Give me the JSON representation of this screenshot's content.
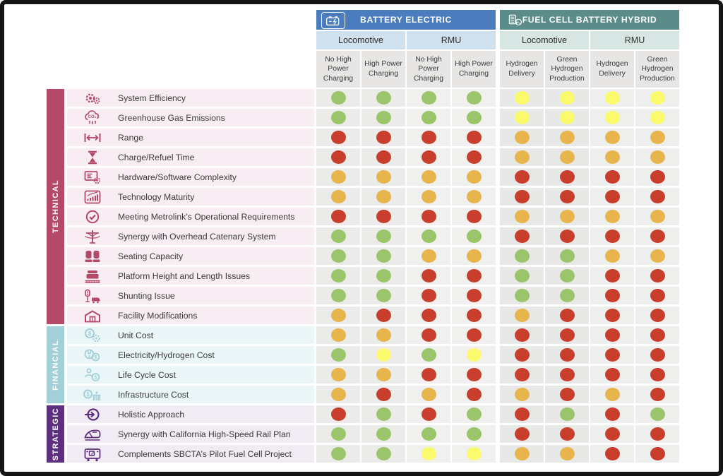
{
  "chart_data": {
    "type": "table",
    "groups": [
      {
        "label": "BATTERY ELECTRIC",
        "icon": "battery-icon",
        "color": "#4a7cbe",
        "sub_color": "#cfe0ee",
        "boxed": true
      },
      {
        "label": "FUEL CELL BATTERY HYBRID",
        "icon": "fuel-cell-icon",
        "color": "#5b8c8a",
        "sub_color": "#d7e5e3",
        "boxed": false
      }
    ],
    "subgroups": [
      "Locomotive",
      "RMU",
      "Locomotive",
      "RMU"
    ],
    "columns": [
      "No High Power Charging",
      "High Power Charging",
      "No High Power Charging",
      "High Power Charging",
      "Hydrogen Delivery",
      "Green Hydrogen Production",
      "Hydrogen Delivery",
      "Green Hydrogen Production"
    ],
    "rating_colors": {
      "G": "#9bc56a",
      "Y": "#fbfa6d",
      "A": "#e7b54b",
      "R": "#c93d2d"
    },
    "categories": [
      {
        "label": "TECHNICAL",
        "color": "#b54a68",
        "row_bg": "#f7edf3",
        "rows": [
          {
            "icon": "gears-icon",
            "label": "System Efficiency",
            "ratings": [
              "G",
              "G",
              "G",
              "G",
              "Y",
              "Y",
              "Y",
              "Y"
            ]
          },
          {
            "icon": "co2-cloud-icon",
            "label": "Greenhouse Gas Emissions",
            "ratings": [
              "G",
              "G",
              "G",
              "G",
              "Y",
              "Y",
              "Y",
              "Y"
            ]
          },
          {
            "icon": "range-arrows-icon",
            "label": "Range",
            "ratings": [
              "R",
              "R",
              "R",
              "R",
              "A",
              "A",
              "A",
              "A"
            ]
          },
          {
            "icon": "hourglass-icon",
            "label": "Charge/Refuel Time",
            "ratings": [
              "R",
              "R",
              "R",
              "R",
              "A",
              "A",
              "A",
              "A"
            ]
          },
          {
            "icon": "hardware-software-icon",
            "label": "Hardware/Software Complexity",
            "ratings": [
              "A",
              "A",
              "A",
              "A",
              "R",
              "R",
              "R",
              "R"
            ]
          },
          {
            "icon": "bar-chart-icon",
            "label": "Technology Maturity",
            "ratings": [
              "A",
              "A",
              "A",
              "A",
              "R",
              "R",
              "R",
              "R"
            ]
          },
          {
            "icon": "check-circle-icon",
            "label": "Meeting Metrolink’s Operational Requirements",
            "ratings": [
              "R",
              "R",
              "R",
              "R",
              "A",
              "A",
              "A",
              "A"
            ]
          },
          {
            "icon": "catenary-icon",
            "label": "Synergy with Overhead Catenary System",
            "ratings": [
              "G",
              "G",
              "G",
              "G",
              "R",
              "R",
              "R",
              "R"
            ]
          },
          {
            "icon": "seats-icon",
            "label": "Seating Capacity",
            "ratings": [
              "G",
              "G",
              "A",
              "A",
              "G",
              "G",
              "A",
              "A"
            ]
          },
          {
            "icon": "platform-icon",
            "label": "Platform Height and Length Issues",
            "ratings": [
              "G",
              "G",
              "R",
              "R",
              "G",
              "G",
              "R",
              "R"
            ]
          },
          {
            "icon": "shunting-signal-icon",
            "label": "Shunting Issue",
            "ratings": [
              "G",
              "G",
              "R",
              "R",
              "G",
              "G",
              "R",
              "R"
            ]
          },
          {
            "icon": "facility-icon",
            "label": "Facility Modifications",
            "ratings": [
              "A",
              "R",
              "R",
              "R",
              "A",
              "R",
              "R",
              "R"
            ]
          }
        ]
      },
      {
        "label": "FINANCIAL",
        "color": "#a3d0d6",
        "row_bg": "#eaf6f7",
        "rows": [
          {
            "icon": "dollar-gear-icon",
            "label": "Unit Cost",
            "ratings": [
              "A",
              "A",
              "R",
              "R",
              "R",
              "R",
              "R",
              "R"
            ]
          },
          {
            "icon": "plug-dollar-icon",
            "label": "Electricity/Hydrogen Cost",
            "ratings": [
              "G",
              "Y",
              "G",
              "Y",
              "R",
              "R",
              "R",
              "R"
            ]
          },
          {
            "icon": "person-dollar-icon",
            "label": "Life Cycle Cost",
            "ratings": [
              "A",
              "A",
              "R",
              "R",
              "R",
              "R",
              "R",
              "R"
            ]
          },
          {
            "icon": "dollar-building-icon",
            "label": "Infrastructure Cost",
            "ratings": [
              "A",
              "R",
              "A",
              "R",
              "A",
              "R",
              "A",
              "R"
            ]
          }
        ]
      },
      {
        "label": "STRATEGIC",
        "color": "#5e2f7d",
        "row_bg": "#f1ecf4",
        "rows": [
          {
            "icon": "arrow-into-circle-icon",
            "label": "Holistic Approach",
            "ratings": [
              "R",
              "G",
              "R",
              "G",
              "R",
              "G",
              "R",
              "G"
            ]
          },
          {
            "icon": "high-speed-train-icon",
            "label": "Synergy with California High-Speed Rail Plan",
            "ratings": [
              "G",
              "G",
              "G",
              "G",
              "R",
              "R",
              "R",
              "R"
            ]
          },
          {
            "icon": "railcar-icon",
            "label": "Complements SBCTA’s Pilot Fuel Cell Project",
            "ratings": [
              "G",
              "G",
              "Y",
              "Y",
              "A",
              "A",
              "R",
              "R"
            ]
          }
        ]
      }
    ],
    "palette": {
      "column_bgs": [
        "#ebebe9",
        "#ebebe9",
        "#f0f0ee",
        "#f0f0ee",
        "#e8e8e6",
        "#e8e8e6",
        "#eeeeec",
        "#eeeeec"
      ],
      "col_header_bg": "#e7e6e4",
      "frame": "#141414"
    }
  }
}
